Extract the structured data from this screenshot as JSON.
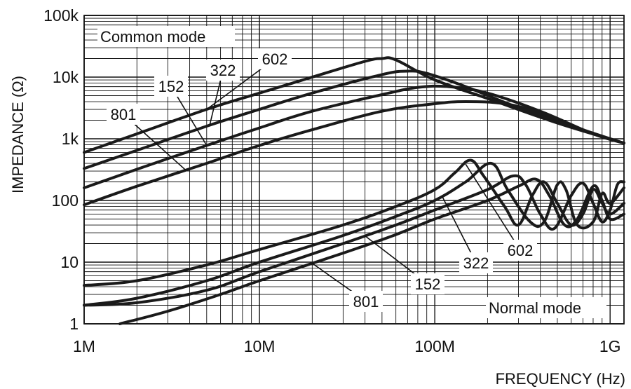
{
  "chart_data": {
    "type": "line",
    "x_scale": "log",
    "y_scale": "log",
    "xlim": [
      1000000,
      1200000000
    ],
    "ylim": [
      1,
      100000
    ],
    "grid": true,
    "xlabel": "FREQUENCY (Hz)",
    "ylabel": "IMPEDANCE (Ω)",
    "x_ticks": [
      {
        "value": 1000000,
        "label": "1M"
      },
      {
        "value": 10000000,
        "label": "10M"
      },
      {
        "value": 100000000,
        "label": "100M"
      },
      {
        "value": 1000000000,
        "label": "1G"
      }
    ],
    "y_ticks": [
      {
        "value": 1,
        "label": "1"
      },
      {
        "value": 10,
        "label": "10"
      },
      {
        "value": 100,
        "label": "100"
      },
      {
        "value": 1000,
        "label": "1k"
      },
      {
        "value": 10000,
        "label": "10k"
      },
      {
        "value": 100000,
        "label": "100k"
      }
    ],
    "annotations": {
      "common_mode": "Common mode",
      "normal_mode": "Normal mode"
    },
    "series": [
      {
        "name": "602",
        "mode": "Common mode",
        "points": [
          [
            1000000,
            600
          ],
          [
            2000000,
            1200
          ],
          [
            5000000,
            3000
          ],
          [
            10000000,
            5500
          ],
          [
            20000000,
            10000
          ],
          [
            40000000,
            18000
          ],
          [
            50000000,
            20000
          ],
          [
            60000000,
            19000
          ],
          [
            100000000,
            9000
          ],
          [
            200000000,
            4500
          ],
          [
            500000000,
            1800
          ],
          [
            1200000000,
            850
          ]
        ]
      },
      {
        "name": "322",
        "mode": "Common mode",
        "points": [
          [
            1000000,
            330
          ],
          [
            2000000,
            650
          ],
          [
            5000000,
            1600
          ],
          [
            10000000,
            3000
          ],
          [
            20000000,
            5500
          ],
          [
            50000000,
            11000
          ],
          [
            70000000,
            12500
          ],
          [
            90000000,
            11500
          ],
          [
            150000000,
            7000
          ],
          [
            300000000,
            3200
          ],
          [
            700000000,
            1400
          ],
          [
            1200000000,
            850
          ]
        ]
      },
      {
        "name": "152",
        "mode": "Common mode",
        "points": [
          [
            1000000,
            160
          ],
          [
            2000000,
            320
          ],
          [
            5000000,
            780
          ],
          [
            10000000,
            1500
          ],
          [
            20000000,
            2800
          ],
          [
            50000000,
            5200
          ],
          [
            80000000,
            6800
          ],
          [
            120000000,
            7000
          ],
          [
            200000000,
            5500
          ],
          [
            400000000,
            2800
          ],
          [
            800000000,
            1200
          ],
          [
            1200000000,
            850
          ]
        ]
      },
      {
        "name": "801",
        "mode": "Common mode",
        "points": [
          [
            1000000,
            85
          ],
          [
            2000000,
            170
          ],
          [
            5000000,
            400
          ],
          [
            10000000,
            780
          ],
          [
            20000000,
            1400
          ],
          [
            50000000,
            2800
          ],
          [
            100000000,
            3700
          ],
          [
            150000000,
            4000
          ],
          [
            250000000,
            3700
          ],
          [
            400000000,
            2600
          ],
          [
            800000000,
            1200
          ],
          [
            1200000000,
            850
          ]
        ]
      },
      {
        "name": "602",
        "mode": "Normal mode",
        "points": [
          [
            1000000,
            4.2
          ],
          [
            2000000,
            5
          ],
          [
            5000000,
            9
          ],
          [
            10000000,
            16
          ],
          [
            30000000,
            40
          ],
          [
            60000000,
            80
          ],
          [
            100000000,
            150
          ],
          [
            130000000,
            280
          ],
          [
            160000000,
            450
          ],
          [
            190000000,
            250
          ],
          [
            250000000,
            80
          ],
          [
            300000000,
            40
          ],
          [
            360000000,
            120
          ],
          [
            420000000,
            200
          ],
          [
            500000000,
            90
          ],
          [
            600000000,
            40
          ],
          [
            700000000,
            60
          ],
          [
            800000000,
            150
          ],
          [
            900000000,
            90
          ],
          [
            1000000000,
            60
          ],
          [
            1200000000,
            90
          ]
        ]
      },
      {
        "name": "322",
        "mode": "Normal mode",
        "points": [
          [
            1000000,
            2
          ],
          [
            2000000,
            2.6
          ],
          [
            5000000,
            5
          ],
          [
            10000000,
            10
          ],
          [
            30000000,
            27
          ],
          [
            60000000,
            55
          ],
          [
            100000000,
            100
          ],
          [
            150000000,
            200
          ],
          [
            210000000,
            400
          ],
          [
            260000000,
            150
          ],
          [
            350000000,
            45
          ],
          [
            420000000,
            45
          ],
          [
            500000000,
            180
          ],
          [
            560000000,
            150
          ],
          [
            650000000,
            40
          ],
          [
            800000000,
            45
          ],
          [
            900000000,
            130
          ],
          [
            1000000000,
            90
          ],
          [
            1200000000,
            160
          ]
        ]
      },
      {
        "name": "152",
        "mode": "Normal mode",
        "points": [
          [
            1000000,
            2
          ],
          [
            2000000,
            2.2
          ],
          [
            5000000,
            3.5
          ],
          [
            10000000,
            7
          ],
          [
            30000000,
            20
          ],
          [
            60000000,
            40
          ],
          [
            100000000,
            70
          ],
          [
            200000000,
            150
          ],
          [
            280000000,
            250
          ],
          [
            330000000,
            180
          ],
          [
            400000000,
            60
          ],
          [
            480000000,
            35
          ],
          [
            600000000,
            120
          ],
          [
            700000000,
            190
          ],
          [
            800000000,
            90
          ],
          [
            900000000,
            45
          ],
          [
            1000000000,
            70
          ],
          [
            1100000000,
            180
          ],
          [
            1200000000,
            200
          ]
        ]
      },
      {
        "name": "801",
        "mode": "Normal mode",
        "points": [
          [
            1600000,
            1
          ],
          [
            3000000,
            1.6
          ],
          [
            6000000,
            3
          ],
          [
            10000000,
            5
          ],
          [
            30000000,
            14
          ],
          [
            60000000,
            28
          ],
          [
            100000000,
            50
          ],
          [
            200000000,
            100
          ],
          [
            300000000,
            170
          ],
          [
            380000000,
            220
          ],
          [
            450000000,
            120
          ],
          [
            550000000,
            40
          ],
          [
            650000000,
            50
          ],
          [
            800000000,
            170
          ],
          [
            900000000,
            100
          ],
          [
            1000000000,
            50
          ],
          [
            1200000000,
            60
          ]
        ]
      }
    ],
    "leaders": [
      {
        "label": "602",
        "mode": "Common mode",
        "to_series": 0,
        "at": 5000000
      },
      {
        "label": "322",
        "mode": "Common mode",
        "to_series": 1,
        "at": 5200000
      },
      {
        "label": "152",
        "mode": "Common mode",
        "to_series": 2,
        "at": 5000000
      },
      {
        "label": "801",
        "mode": "Common mode",
        "to_series": 3,
        "at": 3800000
      },
      {
        "label": "602",
        "mode": "Normal mode",
        "to_series": 4,
        "at": 150000000
      },
      {
        "label": "322",
        "mode": "Normal mode",
        "to_series": 5,
        "at": 110000000
      },
      {
        "label": "152",
        "mode": "Normal mode",
        "to_series": 6,
        "at": 40000000
      },
      {
        "label": "801",
        "mode": "Normal mode",
        "to_series": 7,
        "at": 20000000
      }
    ]
  }
}
